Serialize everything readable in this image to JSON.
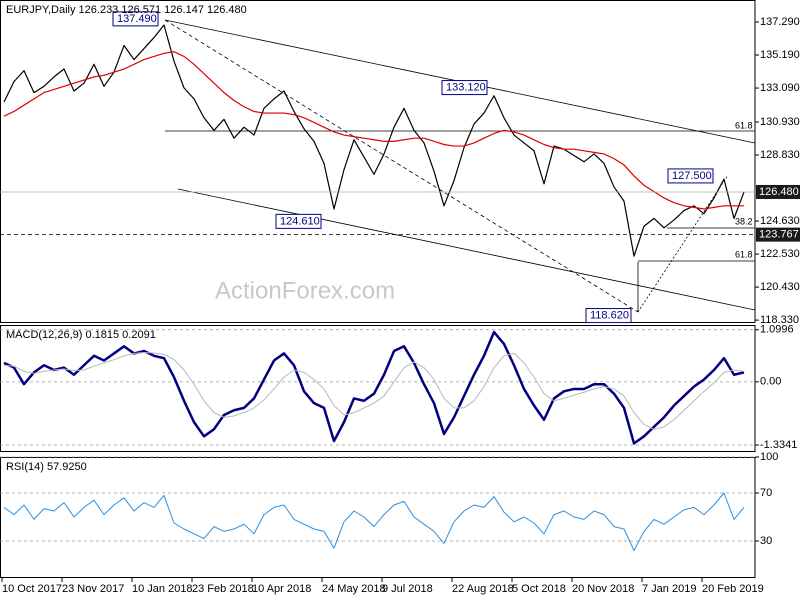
{
  "chart_data": [
    {
      "type": "line",
      "title": "EURJPY,Daily  126.233 126.571 126.147 126.480",
      "watermark": "ActionForex.com",
      "ylim": [
        118.21,
        138.69
      ],
      "yticks": [
        {
          "value": 137.29,
          "label": "137.290"
        },
        {
          "value": 135.19,
          "label": "135.190"
        },
        {
          "value": 133.09,
          "label": "133.090"
        },
        {
          "value": 130.93,
          "label": "130.930"
        },
        {
          "value": 128.83,
          "label": "128.830"
        },
        {
          "value": 124.63,
          "label": "124.630"
        },
        {
          "value": 122.53,
          "label": "122.530"
        },
        {
          "value": 120.43,
          "label": "120.430"
        },
        {
          "value": 118.33,
          "label": "118.330"
        }
      ],
      "series": [
        {
          "color": "#000000",
          "values": [
            132.2,
            133.5,
            134.2,
            132.8,
            133.2,
            133.8,
            134.3,
            132.9,
            133.4,
            134.6,
            133.2,
            134.1,
            135.8,
            134.9,
            135.6,
            136.3,
            137.1,
            134.8,
            133.1,
            132.4,
            131.2,
            130.4,
            131.1,
            129.9,
            130.6,
            130.1,
            131.8,
            132.4,
            132.9,
            131.6,
            130.5,
            129.7,
            128.3,
            125.4,
            127.9,
            129.8,
            128.7,
            127.6,
            128.9,
            130.6,
            131.8,
            130.4,
            129.6,
            127.8,
            125.6,
            127.2,
            129.3,
            130.8,
            131.5,
            132.6,
            131.2,
            130.1,
            129.6,
            129.1,
            127.0,
            129.4,
            129.2,
            128.8,
            128.4,
            128.9,
            128.3,
            126.8,
            125.9,
            122.4,
            124.3,
            124.8,
            124.2,
            124.7,
            125.3,
            125.6,
            125.1,
            126.1,
            127.3,
            124.8,
            126.48
          ]
        },
        {
          "color": "#e00000",
          "values": [
            131.3,
            131.6,
            132.0,
            132.4,
            132.8,
            133.0,
            133.2,
            133.4,
            133.6,
            133.8,
            133.9,
            134.1,
            134.3,
            134.6,
            134.9,
            135.1,
            135.3,
            135.4,
            135.1,
            134.6,
            134.0,
            133.4,
            132.8,
            132.3,
            131.9,
            131.6,
            131.5,
            131.5,
            131.5,
            131.4,
            131.2,
            130.9,
            130.6,
            130.3,
            130.1,
            130.0,
            129.9,
            129.8,
            129.7,
            129.7,
            129.8,
            129.9,
            129.9,
            129.7,
            129.5,
            129.4,
            129.4,
            129.6,
            129.9,
            130.2,
            130.4,
            130.3,
            130.1,
            129.8,
            129.5,
            129.3,
            129.2,
            129.2,
            129.1,
            129.0,
            128.9,
            128.6,
            128.2,
            127.5,
            126.9,
            126.5,
            126.1,
            125.8,
            125.6,
            125.5,
            125.4,
            125.5,
            125.6,
            125.6,
            125.6
          ]
        }
      ],
      "price_labels": [
        {
          "value": 126.48,
          "label": "126.480"
        },
        {
          "value": 123.767,
          "label": "123.767"
        }
      ],
      "annotations": [
        {
          "value": 137.49,
          "label": "137.490"
        },
        {
          "value": 133.12,
          "label": "133.120"
        },
        {
          "value": 124.61,
          "label": "124.610"
        },
        {
          "value": 118.62,
          "label": "118.620"
        },
        {
          "value": 127.5,
          "label": "127.500"
        }
      ],
      "fib_labels": [
        "61.8",
        "38.2",
        "61.8"
      ]
    },
    {
      "type": "line",
      "title": "MACD(12,26,9) 0.1815 0.2091",
      "ylim": [
        -1.46,
        1.2
      ],
      "yticks": [
        1.0996,
        {
          "value": 0,
          "label": "0.00"
        },
        -1.3341
      ],
      "grid": true,
      "series": [
        {
          "color": "#000080",
          "values": [
            0.4,
            0.3,
            -0.05,
            0.2,
            0.35,
            0.25,
            0.3,
            0.15,
            0.35,
            0.55,
            0.45,
            0.6,
            0.75,
            0.6,
            0.65,
            0.55,
            0.5,
            0.1,
            -0.4,
            -0.85,
            -1.15,
            -1.0,
            -0.7,
            -0.6,
            -0.55,
            -0.35,
            0.05,
            0.45,
            0.6,
            0.35,
            -0.2,
            -0.45,
            -0.55,
            -1.25,
            -0.85,
            -0.35,
            -0.4,
            -0.25,
            0.15,
            0.65,
            0.75,
            0.4,
            -0.05,
            -0.45,
            -1.1,
            -0.75,
            -0.3,
            0.15,
            0.55,
            1.05,
            0.8,
            0.35,
            -0.15,
            -0.5,
            -0.8,
            -0.35,
            -0.2,
            -0.15,
            -0.15,
            -0.05,
            -0.05,
            -0.25,
            -0.55,
            -1.3,
            -1.15,
            -0.95,
            -0.75,
            -0.5,
            -0.3,
            -0.1,
            0.05,
            0.25,
            0.5,
            0.15,
            0.2
          ]
        },
        {
          "color": "#b8b8b8",
          "values": [
            0.35,
            0.33,
            0.22,
            0.18,
            0.22,
            0.25,
            0.27,
            0.24,
            0.25,
            0.33,
            0.4,
            0.47,
            0.55,
            0.6,
            0.62,
            0.61,
            0.58,
            0.47,
            0.25,
            -0.05,
            -0.4,
            -0.65,
            -0.75,
            -0.72,
            -0.65,
            -0.55,
            -0.38,
            -0.15,
            0.1,
            0.25,
            0.2,
            0.05,
            -0.15,
            -0.5,
            -0.7,
            -0.65,
            -0.55,
            -0.45,
            -0.3,
            0.0,
            0.3,
            0.42,
            0.3,
            0.05,
            -0.35,
            -0.55,
            -0.55,
            -0.4,
            -0.1,
            0.3,
            0.55,
            0.6,
            0.4,
            0.1,
            -0.25,
            -0.4,
            -0.35,
            -0.28,
            -0.22,
            -0.15,
            -0.1,
            -0.15,
            -0.3,
            -0.65,
            -0.9,
            -1.0,
            -0.95,
            -0.8,
            -0.6,
            -0.4,
            -0.2,
            -0.02,
            0.2,
            0.25,
            0.22
          ]
        }
      ]
    },
    {
      "type": "line",
      "title": "RSI(14) 57.9250",
      "ylim": [
        0,
        100
      ],
      "yticks": [
        30,
        70,
        100
      ],
      "grid": true,
      "categories": [
        "10 Oct 2017",
        null,
        null,
        null,
        null,
        null,
        "23 Nov 2017",
        null,
        null,
        null,
        null,
        null,
        null,
        "10 Jan 2018",
        null,
        null,
        null,
        null,
        null,
        "23 Feb 2018",
        null,
        null,
        null,
        null,
        null,
        "10 Apr 2018",
        null,
        null,
        null,
        null,
        null,
        null,
        "24 May 2018",
        null,
        null,
        null,
        null,
        null,
        "9 Jul 2018",
        null,
        null,
        null,
        null,
        null,
        null,
        "22 Aug 2018",
        null,
        null,
        null,
        null,
        null,
        "5 Oct 2018",
        null,
        null,
        null,
        null,
        null,
        "20 Nov 2018",
        null,
        null,
        null,
        null,
        null,
        null,
        "7 Jan 2019",
        null,
        null,
        null,
        null,
        null,
        "20 Feb 2019",
        null,
        null,
        null,
        null
      ],
      "series": [
        {
          "color": "#2a8fe0",
          "values": [
            58,
            52,
            60,
            48,
            57,
            55,
            62,
            50,
            58,
            64,
            52,
            60,
            66,
            55,
            62,
            58,
            68,
            45,
            40,
            36,
            32,
            42,
            38,
            40,
            44,
            36,
            52,
            58,
            60,
            48,
            44,
            40,
            38,
            24,
            46,
            55,
            50,
            42,
            52,
            60,
            63,
            50,
            44,
            38,
            28,
            46,
            55,
            60,
            58,
            67,
            54,
            46,
            50,
            45,
            36,
            52,
            55,
            50,
            48,
            55,
            52,
            42,
            40,
            22,
            38,
            48,
            44,
            50,
            56,
            58,
            52,
            60,
            70,
            48,
            58
          ]
        }
      ]
    }
  ]
}
